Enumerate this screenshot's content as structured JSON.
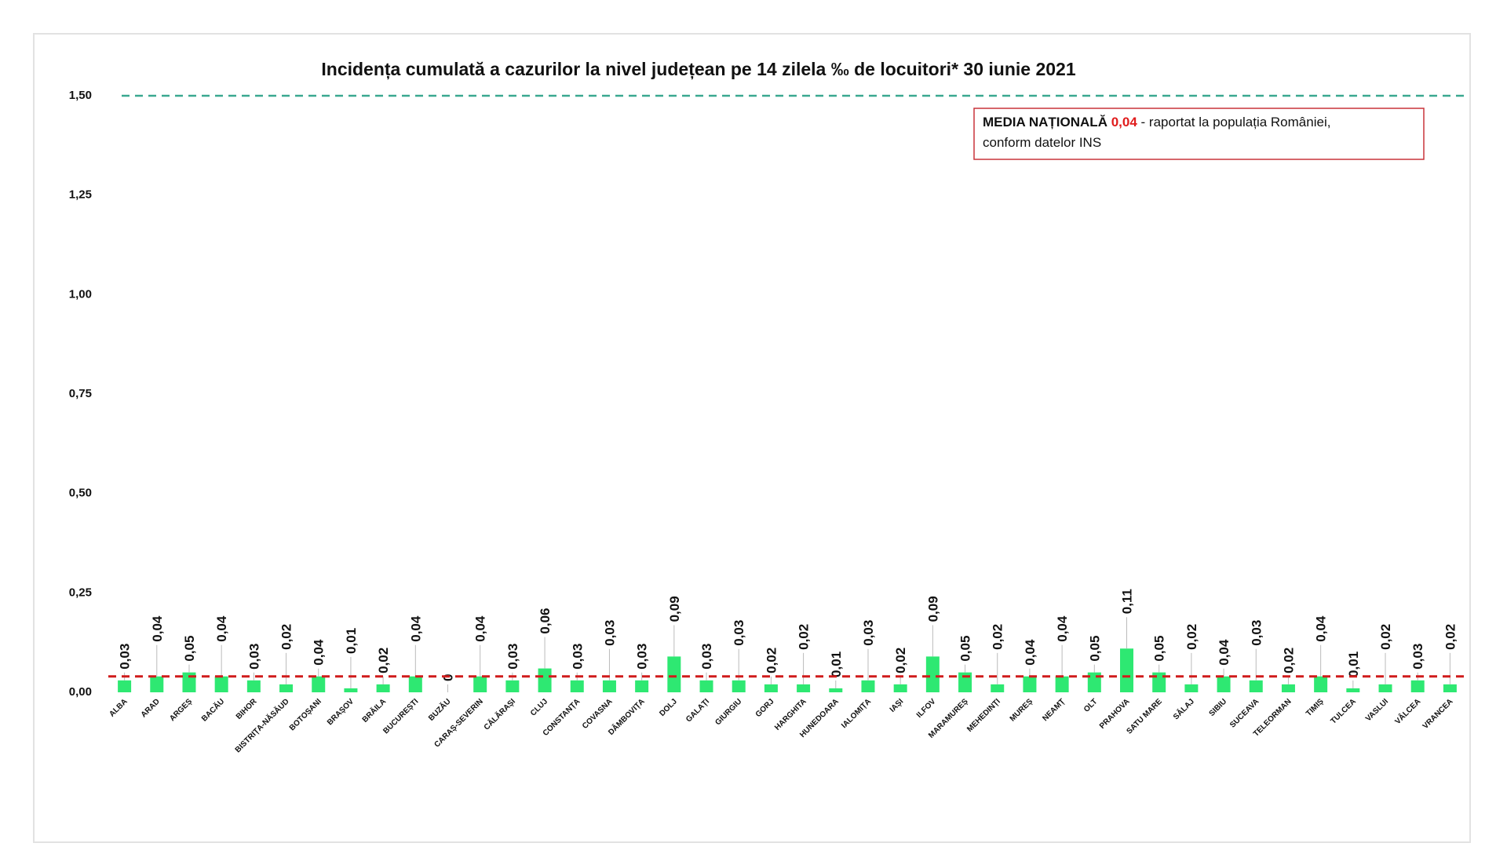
{
  "chart_data": {
    "type": "bar",
    "title": "Incidența cumulată a cazurilor la nivel județean pe 14 zilela ‰ de locuitori*  30 iunie 2021",
    "categories": [
      "ALBA",
      "ARAD",
      "ARGEȘ",
      "BACĂU",
      "BIHOR",
      "BISTRIȚA-NĂSĂUD",
      "BOTOȘANI",
      "BRAȘOV",
      "BRĂILA",
      "BUCUREȘTI",
      "BUZĂU",
      "CARAȘ-SEVERIN",
      "CĂLĂRAȘI",
      "CLUJ",
      "CONSTANȚA",
      "COVASNA",
      "DÂMBOVIȚA",
      "DOLJ",
      "GALAȚI",
      "GIURGIU",
      "GORJ",
      "HARGHITA",
      "HUNEDOARA",
      "IALOMIȚA",
      "IAȘI",
      "ILFOV",
      "MARAMUREȘ",
      "MEHEDINȚI",
      "MUREȘ",
      "NEAMȚ",
      "OLT",
      "PRAHOVA",
      "SATU MARE",
      "SĂLAJ",
      "SIBIU",
      "SUCEAVA",
      "TELEORMAN",
      "TIMIȘ",
      "TULCEA",
      "VASLUI",
      "VÂLCEA",
      "VRANCEA"
    ],
    "values": [
      0.03,
      0.04,
      0.05,
      0.04,
      0.03,
      0.02,
      0.04,
      0.01,
      0.02,
      0.04,
      0,
      0.04,
      0.03,
      0.06,
      0.03,
      0.03,
      0.03,
      0.09,
      0.03,
      0.03,
      0.02,
      0.02,
      0.01,
      0.03,
      0.02,
      0.09,
      0.05,
      0.02,
      0.04,
      0.04,
      0.05,
      0.11,
      0.05,
      0.02,
      0.04,
      0.03,
      0.02,
      0.04,
      0.01,
      0.02,
      0.03,
      0.02
    ],
    "value_labels": [
      "0,03",
      "0,04",
      "0,05",
      "0,04",
      "0,03",
      "0,02",
      "0,04",
      "0,01",
      "0,02",
      "0,04",
      "0",
      "0,04",
      "0,03",
      "0,06",
      "0,03",
      "0,03",
      "0,03",
      "0,09",
      "0,03",
      "0,03",
      "0,02",
      "0,02",
      "0,01",
      "0,03",
      "0,02",
      "0,09",
      "0,05",
      "0,02",
      "0,04",
      "0,04",
      "0,05",
      "0,11",
      "0,05",
      "0,02",
      "0,04",
      "0,03",
      "0,02",
      "0,04",
      "0,01",
      "0,02",
      "0,03",
      "0,02"
    ],
    "color": "#2ee872",
    "ylim": [
      0,
      1.5
    ],
    "yticks": [
      {
        "value": 0,
        "label": "0,00"
      },
      {
        "value": 0.25,
        "label": "0,25"
      },
      {
        "value": 0.5,
        "label": "0,50"
      },
      {
        "value": 0.75,
        "label": "0,75"
      },
      {
        "value": 1,
        "label": "1,00"
      },
      {
        "value": 1.25,
        "label": "1,25"
      },
      {
        "value": 1.5,
        "label": "1,50"
      }
    ],
    "reference_lines": [
      {
        "value": 1.5,
        "color": "#3aa890"
      },
      {
        "value": 0.04,
        "color": "#d01c1c"
      }
    ],
    "annotation": {
      "title": "MEDIA NAȚIONALĂ",
      "value": 0.04,
      "value_label": "0,04",
      "text": [
        "- raportat la populația României,",
        "conform datelor INS"
      ]
    }
  }
}
